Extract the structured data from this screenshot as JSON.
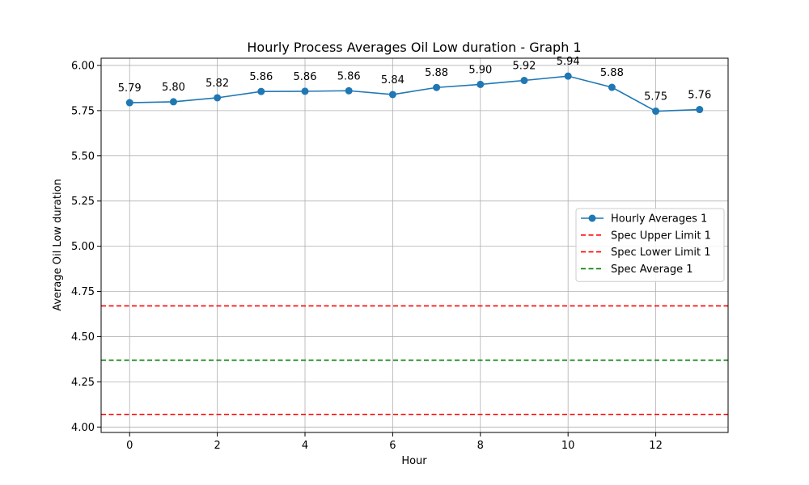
{
  "chart_data": {
    "type": "line",
    "title": "Hourly Process Averages Oil Low duration - Graph 1",
    "xlabel": "Hour",
    "ylabel": "Average Oil Low duration",
    "xlim": [
      -0.65,
      13.65
    ],
    "ylim": [
      3.97,
      6.04
    ],
    "xticks": [
      0,
      2,
      4,
      6,
      8,
      10,
      12
    ],
    "xtick_labels": [
      "0",
      "2",
      "4",
      "6",
      "8",
      "10",
      "12"
    ],
    "yticks": [
      4.0,
      4.25,
      4.5,
      4.75,
      5.0,
      5.25,
      5.5,
      5.75,
      6.0
    ],
    "ytick_labels": [
      "4.00",
      "4.25",
      "4.50",
      "4.75",
      "5.00",
      "5.25",
      "5.50",
      "5.75",
      "6.00"
    ],
    "grid": true,
    "legend_position": "center-right",
    "series": [
      {
        "name": "Hourly Averages 1",
        "x": [
          0,
          1,
          2,
          3,
          4,
          5,
          6,
          7,
          8,
          9,
          10,
          11,
          12,
          13
        ],
        "values": [
          5.794,
          5.799,
          5.821,
          5.856,
          5.857,
          5.86,
          5.839,
          5.878,
          5.895,
          5.917,
          5.941,
          5.879,
          5.747,
          5.756
        ],
        "labels": [
          "5.79",
          "5.80",
          "5.82",
          "5.86",
          "5.86",
          "5.86",
          "5.84",
          "5.88",
          "5.90",
          "5.92",
          "5.94",
          "5.88",
          "5.75",
          "5.76"
        ],
        "color": "#1f77b4",
        "style": "solid-with-markers"
      }
    ],
    "reference_lines": [
      {
        "name": "Spec Upper Limit 1",
        "value": 4.67,
        "color": "#ff0000",
        "style": "dashed"
      },
      {
        "name": "Spec Lower Limit 1",
        "value": 4.07,
        "color": "#ff0000",
        "style": "dashed"
      },
      {
        "name": "Spec Average 1",
        "value": 4.37,
        "color": "#008000",
        "style": "dashed"
      }
    ]
  }
}
